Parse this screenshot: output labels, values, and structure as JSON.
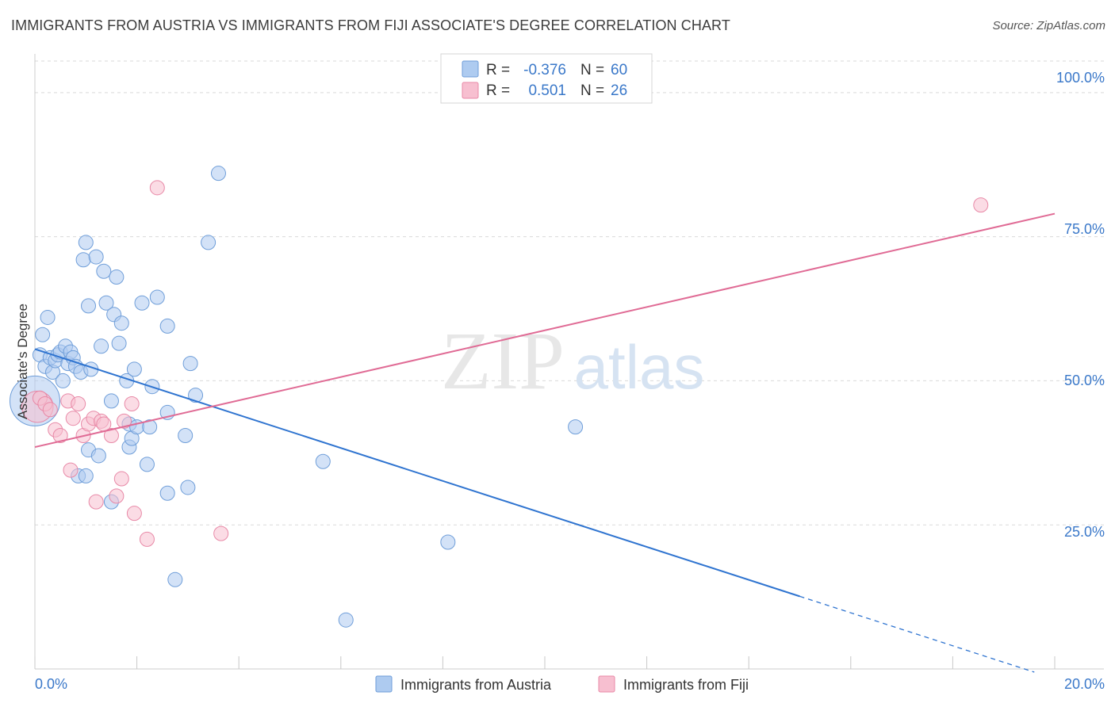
{
  "header": {
    "title": "IMMIGRANTS FROM AUSTRIA VS IMMIGRANTS FROM FIJI ASSOCIATE'S DEGREE CORRELATION CHART",
    "source": "Source: ZipAtlas.com"
  },
  "watermark": {
    "zip": "ZIP",
    "atlas": "atlas"
  },
  "legend": {
    "r_label": "R =",
    "n_label": "N =",
    "entries": [
      {
        "r": "-0.376",
        "n": "60"
      },
      {
        "r": "0.501",
        "n": "26"
      }
    ]
  },
  "colors": {
    "austria_fill": "#aecbf0",
    "austria_stroke": "#6f9ed9",
    "austria_line": "#2f74d0",
    "fiji_fill": "#f7bfd0",
    "fiji_stroke": "#e889a7",
    "fiji_line": "#e06b95",
    "grid": "#d9d9d9",
    "axis_text": "#3a78c9"
  },
  "chart_data": {
    "type": "scatter",
    "title": "IMMIGRANTS FROM AUSTRIA VS IMMIGRANTS FROM FIJI ASSOCIATE'S DEGREE CORRELATION CHART",
    "xlabel": "",
    "ylabel": "Associate's Degree",
    "xlim": [
      0,
      20
    ],
    "ylim": [
      0,
      105
    ],
    "x_tick_labels": [
      "0.0%",
      "20.0%"
    ],
    "y_ticks": [
      25,
      50,
      75,
      100
    ],
    "y_tick_labels": [
      "25.0%",
      "50.0%",
      "75.0%",
      "100.0%"
    ],
    "grid": true,
    "legend_position": "bottom",
    "series": [
      {
        "name": "Immigrants from Austria",
        "r": -0.376,
        "n": 60,
        "trend": {
          "x0": 0,
          "y0": 55.5,
          "x1": 15.0,
          "y1": 12.6,
          "dash_to_x": 19.6
        },
        "points": [
          [
            0.0,
            46.5,
            3.5
          ],
          [
            0.1,
            54.5,
            1
          ],
          [
            0.15,
            58.0,
            1
          ],
          [
            0.2,
            52.5,
            1
          ],
          [
            0.25,
            61.0,
            1
          ],
          [
            0.3,
            54.0,
            1
          ],
          [
            0.35,
            51.5,
            1
          ],
          [
            0.4,
            53.5,
            1
          ],
          [
            0.45,
            54.5,
            1
          ],
          [
            0.5,
            55.0,
            1
          ],
          [
            0.55,
            50.0,
            1
          ],
          [
            0.6,
            56.0,
            1
          ],
          [
            0.65,
            53.0,
            1
          ],
          [
            0.7,
            55.0,
            1
          ],
          [
            0.75,
            54.0,
            1
          ],
          [
            0.8,
            52.5,
            1
          ],
          [
            0.85,
            33.5,
            1
          ],
          [
            0.9,
            51.5,
            1
          ],
          [
            0.95,
            71.0,
            1
          ],
          [
            1.0,
            74.0,
            1
          ],
          [
            1.05,
            63.0,
            1
          ],
          [
            1.0,
            33.5,
            1
          ],
          [
            1.1,
            52.0,
            1
          ],
          [
            1.05,
            38.0,
            1
          ],
          [
            1.2,
            71.5,
            1
          ],
          [
            1.25,
            37.0,
            1
          ],
          [
            1.3,
            56.0,
            1
          ],
          [
            1.35,
            69.0,
            1
          ],
          [
            1.4,
            63.5,
            1
          ],
          [
            1.5,
            46.5,
            1
          ],
          [
            1.55,
            61.5,
            1
          ],
          [
            1.6,
            68.0,
            1
          ],
          [
            1.65,
            56.5,
            1
          ],
          [
            1.7,
            60.0,
            1
          ],
          [
            1.5,
            29.0,
            1
          ],
          [
            1.8,
            50.0,
            1
          ],
          [
            1.85,
            38.5,
            1
          ],
          [
            1.9,
            40.0,
            1
          ],
          [
            1.85,
            42.5,
            1
          ],
          [
            1.95,
            52.0,
            1
          ],
          [
            2.0,
            42.0,
            1
          ],
          [
            2.1,
            63.5,
            1
          ],
          [
            2.2,
            35.5,
            1
          ],
          [
            2.25,
            42.0,
            1
          ],
          [
            2.3,
            49.0,
            1
          ],
          [
            2.4,
            64.5,
            1
          ],
          [
            2.6,
            44.5,
            1
          ],
          [
            2.6,
            59.5,
            1
          ],
          [
            2.6,
            30.5,
            1
          ],
          [
            2.75,
            15.5,
            1
          ],
          [
            2.95,
            40.5,
            1
          ],
          [
            3.0,
            31.5,
            1
          ],
          [
            3.05,
            53.0,
            1
          ],
          [
            3.15,
            47.5,
            1
          ],
          [
            3.4,
            74.0,
            1
          ],
          [
            3.6,
            86.0,
            1
          ],
          [
            5.65,
            36.0,
            1
          ],
          [
            6.1,
            8.5,
            1
          ],
          [
            8.1,
            22.0,
            1
          ],
          [
            10.6,
            42.0,
            1
          ]
        ]
      },
      {
        "name": "Immigrants from Fiji",
        "r": 0.501,
        "n": 26,
        "trend": {
          "x0": 0,
          "y0": 38.5,
          "x1": 20.0,
          "y1": 79.0
        },
        "points": [
          [
            0.05,
            45.5,
            2.2
          ],
          [
            0.1,
            47.0,
            1
          ],
          [
            0.2,
            46.0,
            1
          ],
          [
            0.3,
            45.0,
            1
          ],
          [
            0.4,
            41.5,
            1
          ],
          [
            0.5,
            40.5,
            1
          ],
          [
            0.65,
            46.5,
            1
          ],
          [
            0.7,
            34.5,
            1
          ],
          [
            0.75,
            43.5,
            1
          ],
          [
            0.85,
            46.0,
            1
          ],
          [
            0.95,
            40.5,
            1
          ],
          [
            1.05,
            42.5,
            1
          ],
          [
            1.15,
            43.5,
            1
          ],
          [
            1.2,
            29.0,
            1
          ],
          [
            1.3,
            43.0,
            1
          ],
          [
            1.35,
            42.5,
            1
          ],
          [
            1.5,
            40.5,
            1
          ],
          [
            1.6,
            30.0,
            1
          ],
          [
            1.7,
            33.0,
            1
          ],
          [
            1.75,
            43.0,
            1
          ],
          [
            1.9,
            46.0,
            1
          ],
          [
            1.95,
            27.0,
            1
          ],
          [
            2.2,
            22.5,
            1
          ],
          [
            2.4,
            83.5,
            1
          ],
          [
            3.65,
            23.5,
            1
          ],
          [
            18.55,
            80.5,
            1
          ]
        ]
      }
    ]
  }
}
